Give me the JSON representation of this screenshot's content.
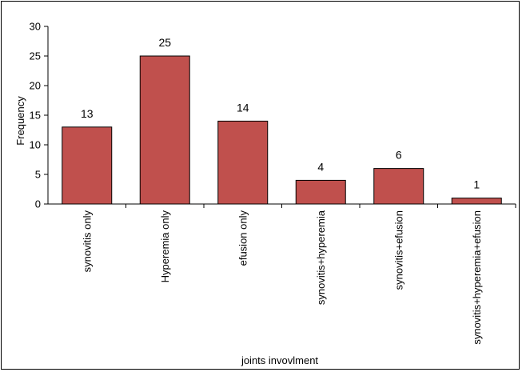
{
  "chart_data": {
    "type": "bar",
    "categories": [
      "synovitis only",
      "Hyperemia only",
      "efusion only",
      "synovitis+hyperemia",
      "synovitis+efusion",
      "synovitis+hyperemia+efusion"
    ],
    "values": [
      13,
      25,
      14,
      4,
      6,
      1
    ],
    "data_labels": [
      "13",
      "25",
      "14",
      "4",
      "6",
      "1"
    ],
    "xlabel": "joints invovlment",
    "ylabel": "Frequency",
    "ylim": [
      0,
      30
    ],
    "yticks": [
      0,
      5,
      10,
      15,
      20,
      25,
      30
    ],
    "ytick_labels": [
      "0",
      "5",
      "10",
      "15",
      "20",
      "25",
      "30"
    ],
    "grid": false,
    "legend": "none",
    "bar_color": "#c0504d",
    "bar_edge_color": "#000000"
  }
}
